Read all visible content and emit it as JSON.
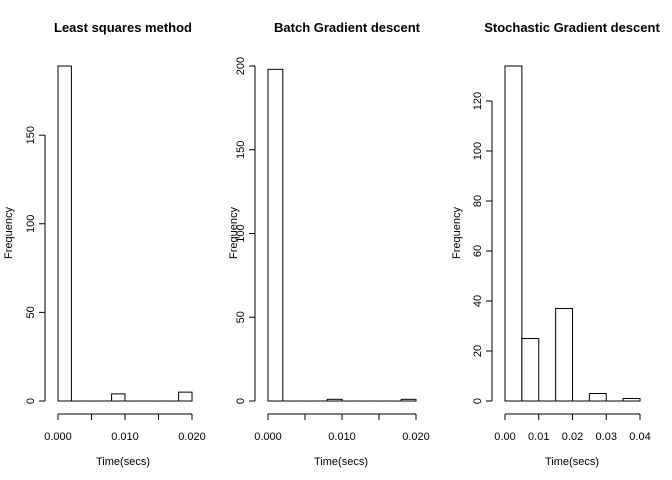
{
  "chart_data": [
    {
      "type": "bar",
      "title": "Least squares method",
      "xlabel": "Time(secs)",
      "ylabel": "Frequency",
      "bin_edges": [
        0.0,
        0.002,
        0.004,
        0.006,
        0.008,
        0.01,
        0.012,
        0.014,
        0.016,
        0.018,
        0.02
      ],
      "values": [
        189,
        0,
        0,
        0,
        4,
        0,
        0,
        0,
        0,
        5
      ],
      "xlim": [
        0.0,
        0.02
      ],
      "ylim": [
        0,
        189
      ],
      "xticks": [
        0.0,
        0.005,
        0.01,
        0.015,
        0.02
      ],
      "xtick_labels": [
        "0.000",
        "",
        "0.010",
        "",
        "0.020"
      ],
      "yticks": [
        0,
        50,
        100,
        150
      ],
      "ytick_labels": [
        "0",
        "50",
        "100",
        "150"
      ]
    },
    {
      "type": "bar",
      "title": "Batch Gradient descent",
      "xlabel": "Time(secs)",
      "ylabel": "Frequency",
      "bin_edges": [
        0.0,
        0.002,
        0.004,
        0.006,
        0.008,
        0.01,
        0.012,
        0.014,
        0.016,
        0.018,
        0.02
      ],
      "values": [
        198,
        0,
        0,
        0,
        1,
        0,
        0,
        0,
        0,
        1
      ],
      "xlim": [
        0.0,
        0.02
      ],
      "ylim": [
        0,
        200
      ],
      "xticks": [
        0.0,
        0.005,
        0.01,
        0.015,
        0.02
      ],
      "xtick_labels": [
        "0.000",
        "",
        "0.010",
        "",
        "0.020"
      ],
      "yticks": [
        0,
        50,
        100,
        150,
        200
      ],
      "ytick_labels": [
        "0",
        "50",
        "100",
        "150",
        "200"
      ]
    },
    {
      "type": "bar",
      "title": "Stochastic Gradient descent",
      "xlabel": "Time(secs)",
      "ylabel": "Frequency",
      "bin_edges": [
        0.0,
        0.005,
        0.01,
        0.015,
        0.02,
        0.025,
        0.03,
        0.035,
        0.04
      ],
      "values": [
        134,
        25,
        0,
        37,
        0,
        3,
        0,
        1
      ],
      "xlim": [
        0.0,
        0.04
      ],
      "ylim": [
        0,
        134
      ],
      "xticks": [
        0.0,
        0.01,
        0.02,
        0.03,
        0.04
      ],
      "xtick_labels": [
        "0.00",
        "0.01",
        "0.02",
        "0.03",
        "0.04"
      ],
      "yticks": [
        0,
        20,
        40,
        60,
        80,
        100,
        120
      ],
      "ytick_labels": [
        "0",
        "20",
        "40",
        "60",
        "80",
        "100",
        "120"
      ]
    }
  ]
}
